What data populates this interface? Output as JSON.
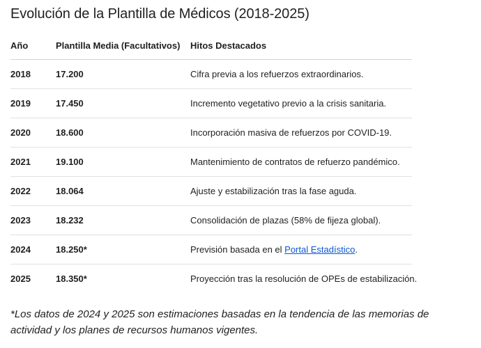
{
  "title": "Evolución de la Plantilla de Médicos (2018-2025)",
  "table": {
    "headers": {
      "year": "Año",
      "staff": "Plantilla Media (Facultativos)",
      "notes": "Hitos Destacados"
    },
    "rows": [
      {
        "year": "2018",
        "staff": "17.200",
        "notes": "Cifra previa a los refuerzos extraordinarios."
      },
      {
        "year": "2019",
        "staff": "17.450",
        "notes": "Incremento vegetativo previo a la crisis sanitaria."
      },
      {
        "year": "2020",
        "staff": "18.600",
        "notes": "Incorporación masiva de refuerzos por COVID-19."
      },
      {
        "year": "2021",
        "staff": "19.100",
        "notes": "Mantenimiento de contratos de refuerzo pandémico."
      },
      {
        "year": "2022",
        "staff": "18.064",
        "notes": "Ajuste y estabilización tras la fase aguda."
      },
      {
        "year": "2023",
        "staff": "18.232",
        "notes": "Consolidación de plazas (58% de fijeza global)."
      },
      {
        "year": "2024",
        "staff": "18.250*",
        "notes_prefix": "Previsión basada en el ",
        "notes_link": "Portal Estadístico",
        "notes_suffix": "."
      },
      {
        "year": "2025",
        "staff": "18.350*",
        "notes": "Proyección tras la resolución de OPEs de estabilización."
      }
    ]
  },
  "footnote": "*Los datos de 2024 y 2025 son estimaciones basadas en la tendencia de las memorias de actividad y los planes de recursos humanos vigentes."
}
